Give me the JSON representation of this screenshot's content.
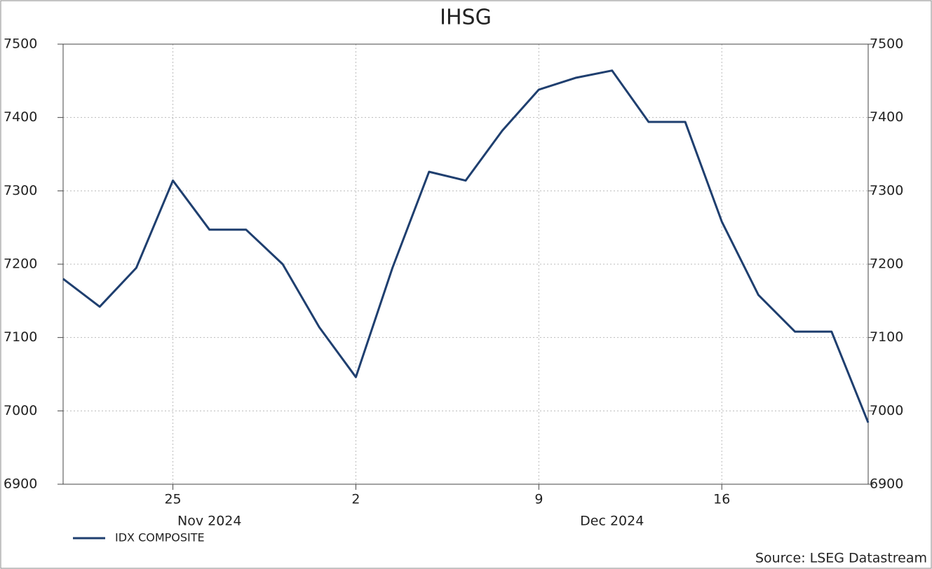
{
  "chart_data": {
    "type": "line",
    "title": "IHSG",
    "x": [
      "2024-11-20",
      "2024-11-21",
      "2024-11-22",
      "2024-11-25",
      "2024-11-26",
      "2024-11-27",
      "2024-11-28",
      "2024-11-29",
      "2024-12-02",
      "2024-12-03",
      "2024-12-04",
      "2024-12-05",
      "2024-12-06",
      "2024-12-09",
      "2024-12-10",
      "2024-12-11",
      "2024-12-12",
      "2024-12-13",
      "2024-12-16",
      "2024-12-17",
      "2024-12-18",
      "2024-12-19",
      "2024-12-20"
    ],
    "series": [
      {
        "name": "IDX COMPOSITE",
        "color": "#1f3f6f",
        "values": [
          7180,
          7142,
          7195,
          7314,
          7247,
          7247,
          7200,
          7114,
          7046,
          7195,
          7326,
          7314,
          7382,
          7438,
          7454,
          7464,
          7394,
          7394,
          7258,
          7158,
          7108,
          7108,
          6984
        ]
      }
    ],
    "xticks": [
      {
        "value": "2024-11-25",
        "label": "25"
      },
      {
        "value": "2024-12-02",
        "label": "2"
      },
      {
        "value": "2024-12-09",
        "label": "9"
      },
      {
        "value": "2024-12-16",
        "label": "16"
      }
    ],
    "month_labels": [
      {
        "value": "2024-11-26",
        "label": "Nov 2024"
      },
      {
        "value": "2024-12-11",
        "label": "Dec 2024"
      }
    ],
    "ylim": [
      6900,
      7500
    ],
    "yticks": [
      6900,
      7000,
      7100,
      7200,
      7300,
      7400,
      7500
    ],
    "y2lim": [
      6900,
      7500
    ],
    "y2ticks": [
      6900,
      7000,
      7100,
      7200,
      7300,
      7400,
      7500
    ],
    "grid": true,
    "legend": "bottom-left",
    "source": "Source: LSEG Datastream"
  }
}
